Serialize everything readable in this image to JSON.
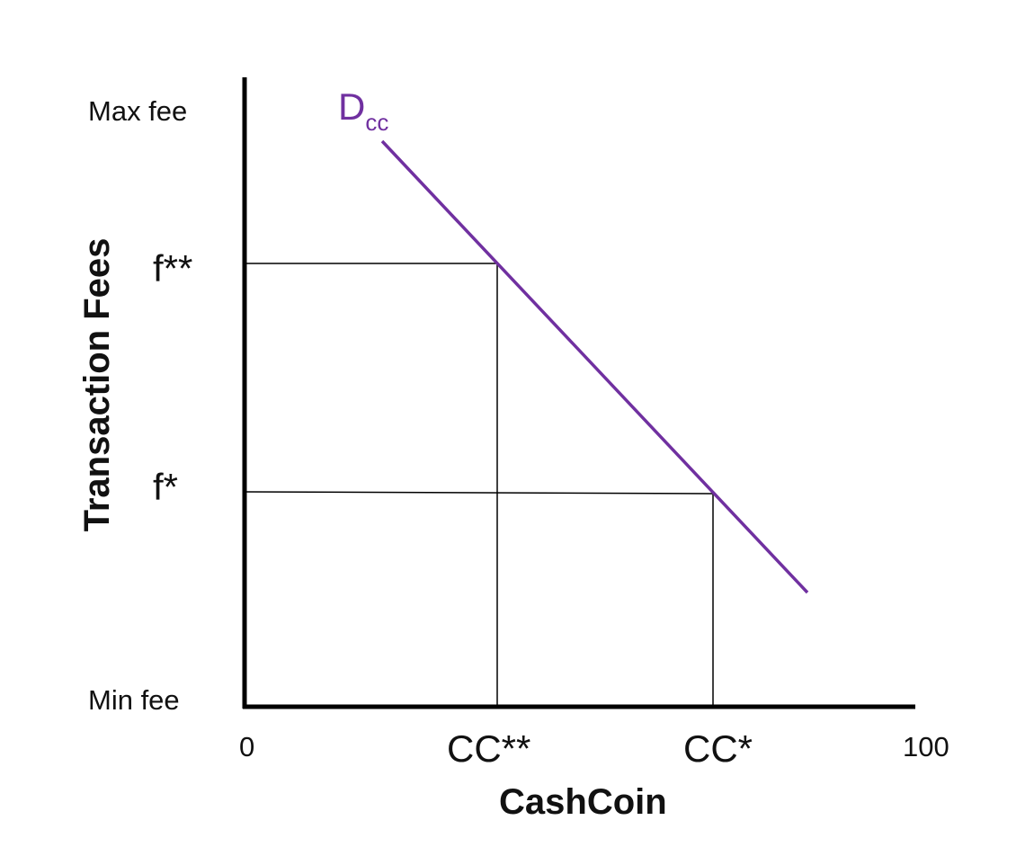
{
  "labels": {
    "y_max": "Max fee",
    "y_min": "Min fee",
    "f_high": "f**",
    "f_low": "f*",
    "x_zero": "0",
    "x_max": "100",
    "cc_low": "CC**",
    "cc_high": "CC*",
    "x_title": "CashCoin",
    "y_title": "Transaction Fees",
    "curve_main": "D",
    "curve_sub": "cc"
  },
  "colors": {
    "curve": "#7030a0",
    "axes": "#000000"
  }
}
